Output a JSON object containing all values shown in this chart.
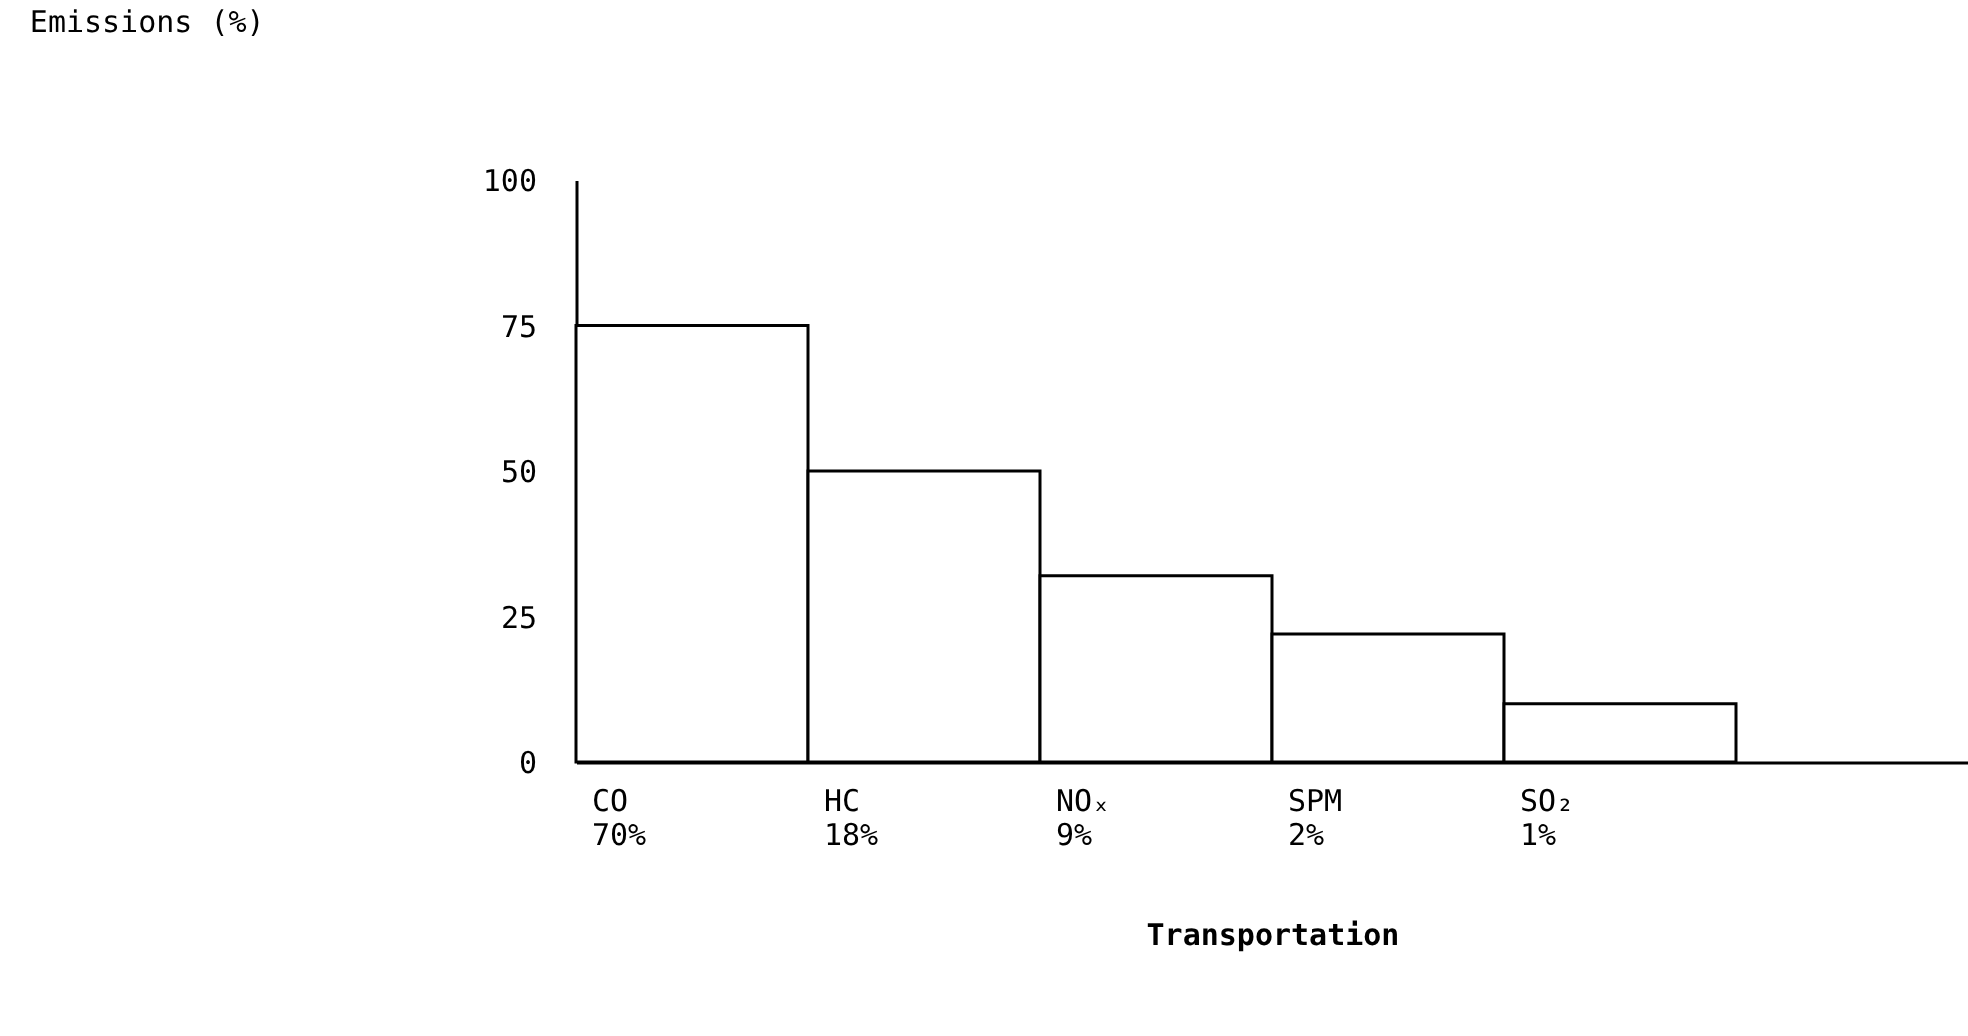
{
  "chart_data": {
    "type": "bar",
    "xlabel": "Transportation",
    "annotations": [
      "Emissions (%)"
    ],
    "categories": [
      "CO\n70%",
      "HC\n18%",
      "NOₓ\n9%",
      "SPM\n2%",
      "SO₂\n1%"
    ],
    "values": [
      75,
      50,
      32,
      22,
      10
    ],
    "color": "#ffffff",
    "ylim": [
      0,
      100
    ],
    "yticks": [
      0,
      25,
      50,
      75,
      100
    ],
    "grid": false
  }
}
